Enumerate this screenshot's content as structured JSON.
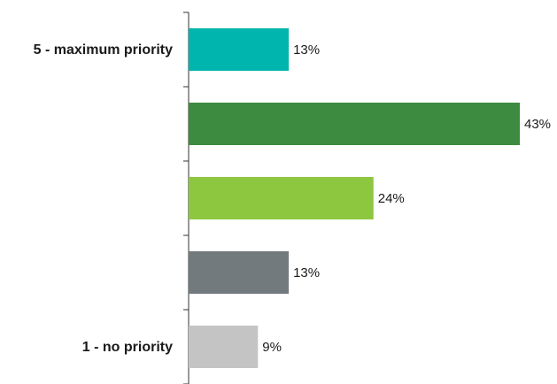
{
  "chart_data": {
    "type": "bar",
    "orientation": "horizontal",
    "categories": [
      "5 - maximum priority",
      "",
      "",
      "",
      "1 - no priority"
    ],
    "values": [
      13,
      43,
      24,
      13,
      9
    ],
    "value_labels": [
      "13%",
      "43%",
      "24%",
      "13%",
      "9%"
    ],
    "colors": [
      "#00b5ad",
      "#3d8b40",
      "#8dc63f",
      "#737a7e",
      "#c4c4c4"
    ],
    "xlim": [
      0,
      50
    ],
    "grid": false,
    "legend": "none"
  }
}
